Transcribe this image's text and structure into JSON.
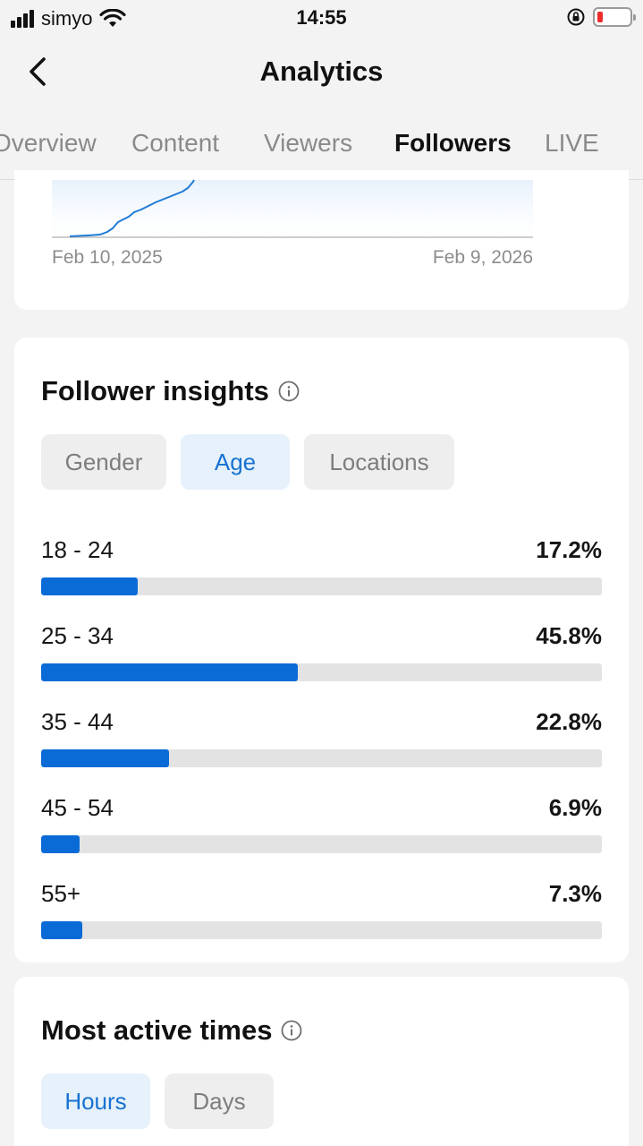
{
  "status_bar": {
    "carrier": "simyo",
    "time": "14:55",
    "battery_color": "#ee2b2b"
  },
  "header": {
    "title": "Analytics",
    "back_icon": "chevron-left-icon"
  },
  "tabs": [
    {
      "label": "Overview",
      "active": false
    },
    {
      "label": "Content",
      "active": false
    },
    {
      "label": "Viewers",
      "active": false
    },
    {
      "label": "Followers",
      "active": true
    },
    {
      "label": "LIVE",
      "active": false
    }
  ],
  "follower_chart": {
    "start_date": "Feb 10, 2025",
    "end_date": "Feb 9, 2026",
    "line_color": "#1f7bd6"
  },
  "follower_insights": {
    "title": "Follower insights",
    "info_icon": "info-icon",
    "filters": [
      {
        "label": "Gender",
        "active": false
      },
      {
        "label": "Age",
        "active": true
      },
      {
        "label": "Locations",
        "active": false
      }
    ],
    "age_groups": [
      {
        "label": "18 - 24",
        "value": "17.2%",
        "fraction": 0.172
      },
      {
        "label": "25 - 34",
        "value": "45.8%",
        "fraction": 0.458
      },
      {
        "label": "35 - 44",
        "value": "22.8%",
        "fraction": 0.228
      },
      {
        "label": "45 - 54",
        "value": "6.9%",
        "fraction": 0.069
      },
      {
        "label": "55+",
        "value": "7.3%",
        "fraction": 0.073
      }
    ],
    "bar_color": "#0a6bd6"
  },
  "most_active_times": {
    "title": "Most active times",
    "info_icon": "info-icon",
    "filters": [
      {
        "label": "Hours",
        "active": true
      },
      {
        "label": "Days",
        "active": false
      }
    ]
  }
}
